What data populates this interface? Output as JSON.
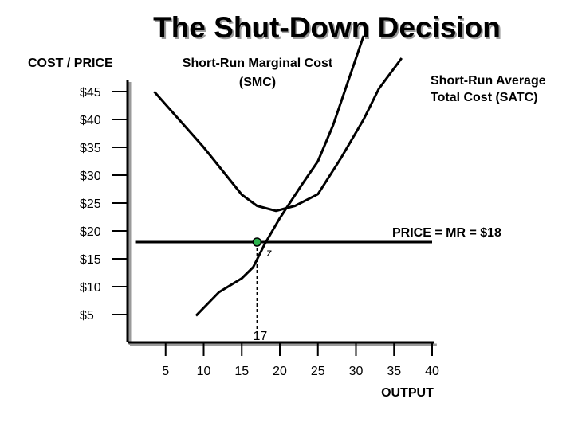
{
  "chart_data": {
    "type": "line",
    "title": "The Shut-Down Decision",
    "ylabel": "COST / PRICE",
    "xlabel": "OUTPUT",
    "y_ticks": [
      "$45",
      "$40",
      "$35",
      "$30",
      "$25",
      "$20",
      "$15",
      "$10",
      "$5"
    ],
    "y_tick_values": [
      45,
      40,
      35,
      30,
      25,
      20,
      15,
      10,
      5
    ],
    "x_ticks": [
      "5",
      "10",
      "15",
      "20",
      "25",
      "30",
      "35",
      "40"
    ],
    "x_tick_values": [
      5,
      10,
      15,
      20,
      25,
      30,
      35,
      40
    ],
    "xlim": [
      0,
      42
    ],
    "ylim": [
      0,
      47
    ],
    "grid": false,
    "series": [
      {
        "name": "Short-Run Marginal Cost (SMC)",
        "label_lines": [
          "Short-Run Marginal Cost",
          "(SMC)"
        ],
        "points": [
          [
            9,
            4.8
          ],
          [
            12,
            9
          ],
          [
            15,
            11.5
          ],
          [
            16.5,
            13.5
          ],
          [
            18,
            17.6
          ],
          [
            20,
            22.3
          ],
          [
            23,
            28.5
          ],
          [
            25,
            32.5
          ],
          [
            27,
            39
          ],
          [
            29,
            47
          ],
          [
            31,
            55
          ]
        ]
      },
      {
        "name": "Short-Run Average Total Cost (SATC)",
        "label_lines": [
          "Short-Run Average",
          "Total Cost (SATC)"
        ],
        "points": [
          [
            3.5,
            45
          ],
          [
            10,
            35
          ],
          [
            15,
            26.5
          ],
          [
            17,
            24.5
          ],
          [
            19.5,
            23.6
          ],
          [
            22,
            24.5
          ],
          [
            25,
            26.6
          ],
          [
            28,
            33
          ],
          [
            31,
            40
          ],
          [
            33,
            45.5
          ],
          [
            36,
            51
          ]
        ]
      },
      {
        "name": "PRICE = MR = $18",
        "label": "PRICE = MR = $18",
        "points": [
          [
            1,
            18
          ],
          [
            40,
            18
          ]
        ]
      }
    ],
    "annotations": [
      {
        "label": "z",
        "x": 17,
        "y": 18
      },
      {
        "label": "17",
        "x": 17,
        "y": 0
      }
    ],
    "marker_color": "#2bb24c"
  }
}
